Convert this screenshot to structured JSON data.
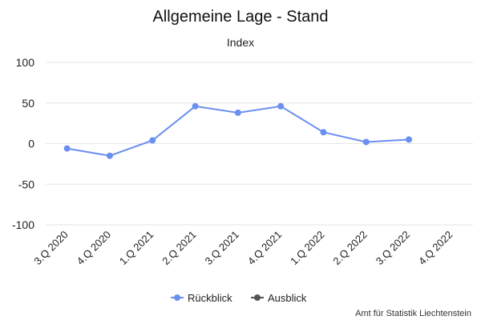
{
  "chart_data": {
    "type": "line",
    "title": "Allgemeine Lage - Stand",
    "subtitle": "Index",
    "categories": [
      "3.Q 2020",
      "4.Q 2020",
      "1.Q 2021",
      "2.Q 2021",
      "3.Q 2021",
      "4.Q 2021",
      "1.Q 2022",
      "2.Q 2022",
      "3.Q 2022",
      "4.Q 2022"
    ],
    "ylim": [
      -100,
      100
    ],
    "yticks": [
      100,
      50,
      0,
      -50,
      -100
    ],
    "grid": true,
    "legend_position": "bottom-center",
    "series": [
      {
        "name": "Rückblick",
        "color": "#6b8ff0",
        "values": [
          -6,
          -15,
          4,
          46,
          38,
          46,
          14,
          2,
          5,
          null
        ]
      },
      {
        "name": "Ausblick",
        "color": "#555555",
        "values": [
          null,
          null,
          null,
          null,
          null,
          null,
          null,
          null,
          null,
          null
        ]
      }
    ]
  },
  "credit": "Amt für Statistik Liechtenstein"
}
